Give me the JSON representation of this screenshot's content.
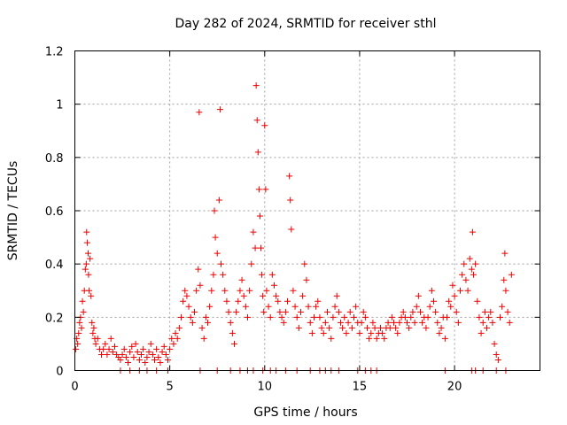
{
  "chart_data": {
    "type": "scatter",
    "title": "Day 282 of 2024, SRMTID for receiver sthl",
    "xlabel": "GPS time / hours",
    "ylabel": "SRMTID / TECUs",
    "xlim": [
      0,
      24.5
    ],
    "ylim": [
      0,
      1.2
    ],
    "xticks": [
      0,
      5,
      10,
      15,
      20
    ],
    "xtick_labels": [
      "0",
      "5",
      "10",
      "15",
      "20"
    ],
    "yticks": [
      0,
      0.2,
      0.4,
      0.6,
      0.8,
      1,
      1.2
    ],
    "ytick_labels": [
      "0",
      "0.2",
      "0.4",
      "0.6",
      "0.8",
      "1",
      "1.2"
    ],
    "grid": true,
    "marker": "+",
    "color": "#ee0000",
    "series": [
      {
        "name": "SRMTID",
        "points": [
          [
            0.05,
            0.08
          ],
          [
            0.1,
            0.12
          ],
          [
            0.15,
            0.1
          ],
          [
            0.2,
            0.14
          ],
          [
            0.25,
            0.18
          ],
          [
            0.3,
            0.2
          ],
          [
            0.35,
            0.16
          ],
          [
            0.4,
            0.26
          ],
          [
            0.45,
            0.22
          ],
          [
            0.5,
            0.3
          ],
          [
            0.55,
            0.38
          ],
          [
            0.6,
            0.4
          ],
          [
            0.62,
            0.52
          ],
          [
            0.65,
            0.48
          ],
          [
            0.7,
            0.44
          ],
          [
            0.72,
            0.36
          ],
          [
            0.75,
            0.3
          ],
          [
            0.8,
            0.42
          ],
          [
            0.85,
            0.28
          ],
          [
            0.9,
            0.18
          ],
          [
            0.95,
            0.14
          ],
          [
            1.0,
            0.16
          ],
          [
            1.05,
            0.12
          ],
          [
            1.1,
            0.1
          ],
          [
            1.2,
            0.12
          ],
          [
            1.3,
            0.08
          ],
          [
            1.4,
            0.06
          ],
          [
            1.5,
            0.08
          ],
          [
            1.6,
            0.1
          ],
          [
            1.7,
            0.06
          ],
          [
            1.8,
            0.08
          ],
          [
            1.9,
            0.12
          ],
          [
            2.0,
            0.07
          ],
          [
            2.1,
            0.09
          ],
          [
            2.2,
            0.06
          ],
          [
            2.3,
            0.05
          ],
          [
            2.4,
            0.04
          ],
          [
            2.5,
            0.06
          ],
          [
            2.6,
            0.08
          ],
          [
            2.7,
            0.05
          ],
          [
            2.8,
            0.03
          ],
          [
            2.9,
            0.07
          ],
          [
            3.0,
            0.09
          ],
          [
            3.1,
            0.05
          ],
          [
            3.2,
            0.1
          ],
          [
            3.3,
            0.07
          ],
          [
            3.4,
            0.04
          ],
          [
            3.5,
            0.06
          ],
          [
            3.6,
            0.08
          ],
          [
            3.7,
            0.03
          ],
          [
            3.8,
            0.05
          ],
          [
            3.9,
            0.07
          ],
          [
            4.0,
            0.1
          ],
          [
            4.1,
            0.06
          ],
          [
            4.2,
            0.04
          ],
          [
            4.3,
            0.08
          ],
          [
            4.4,
            0.05
          ],
          [
            4.5,
            0.03
          ],
          [
            4.6,
            0.07
          ],
          [
            4.7,
            0.09
          ],
          [
            4.8,
            0.06
          ],
          [
            4.9,
            0.04
          ],
          [
            5.0,
            0.08
          ],
          [
            5.1,
            0.12
          ],
          [
            5.2,
            0.1
          ],
          [
            5.3,
            0.14
          ],
          [
            5.4,
            0.12
          ],
          [
            5.5,
            0.16
          ],
          [
            5.6,
            0.2
          ],
          [
            5.7,
            0.26
          ],
          [
            5.8,
            0.3
          ],
          [
            5.9,
            0.28
          ],
          [
            6.0,
            0.24
          ],
          [
            6.1,
            0.2
          ],
          [
            6.2,
            0.18
          ],
          [
            6.3,
            0.22
          ],
          [
            6.4,
            0.3
          ],
          [
            6.5,
            0.38
          ],
          [
            6.55,
            0.97
          ],
          [
            6.6,
            0.32
          ],
          [
            6.7,
            0.16
          ],
          [
            6.8,
            0.12
          ],
          [
            6.9,
            0.2
          ],
          [
            7.0,
            0.18
          ],
          [
            7.1,
            0.24
          ],
          [
            7.2,
            0.3
          ],
          [
            7.3,
            0.36
          ],
          [
            7.35,
            0.6
          ],
          [
            7.4,
            0.5
          ],
          [
            7.5,
            0.44
          ],
          [
            7.6,
            0.64
          ],
          [
            7.65,
            0.98
          ],
          [
            7.7,
            0.4
          ],
          [
            7.8,
            0.36
          ],
          [
            7.9,
            0.3
          ],
          [
            8.0,
            0.26
          ],
          [
            8.1,
            0.22
          ],
          [
            8.2,
            0.18
          ],
          [
            8.3,
            0.14
          ],
          [
            8.4,
            0.1
          ],
          [
            8.5,
            0.22
          ],
          [
            8.6,
            0.26
          ],
          [
            8.7,
            0.3
          ],
          [
            8.8,
            0.34
          ],
          [
            8.9,
            0.28
          ],
          [
            9.0,
            0.24
          ],
          [
            9.1,
            0.2
          ],
          [
            9.2,
            0.3
          ],
          [
            9.3,
            0.4
          ],
          [
            9.4,
            0.52
          ],
          [
            9.5,
            0.46
          ],
          [
            9.55,
            1.07
          ],
          [
            9.6,
            0.94
          ],
          [
            9.65,
            0.82
          ],
          [
            9.7,
            0.68
          ],
          [
            9.75,
            0.58
          ],
          [
            9.8,
            0.46
          ],
          [
            9.85,
            0.36
          ],
          [
            9.9,
            0.28
          ],
          [
            9.95,
            0.22
          ],
          [
            10.0,
            0.92
          ],
          [
            10.05,
            0.68
          ],
          [
            10.1,
            0.3
          ],
          [
            10.2,
            0.24
          ],
          [
            10.3,
            0.2
          ],
          [
            10.4,
            0.36
          ],
          [
            10.5,
            0.32
          ],
          [
            10.6,
            0.28
          ],
          [
            10.7,
            0.26
          ],
          [
            10.8,
            0.22
          ],
          [
            10.9,
            0.2
          ],
          [
            11.0,
            0.18
          ],
          [
            11.1,
            0.22
          ],
          [
            11.2,
            0.26
          ],
          [
            11.3,
            0.73
          ],
          [
            11.35,
            0.64
          ],
          [
            11.4,
            0.53
          ],
          [
            11.5,
            0.3
          ],
          [
            11.6,
            0.24
          ],
          [
            11.7,
            0.2
          ],
          [
            11.8,
            0.16
          ],
          [
            11.9,
            0.22
          ],
          [
            12.0,
            0.28
          ],
          [
            12.1,
            0.4
          ],
          [
            12.2,
            0.34
          ],
          [
            12.3,
            0.24
          ],
          [
            12.4,
            0.18
          ],
          [
            12.5,
            0.14
          ],
          [
            12.6,
            0.2
          ],
          [
            12.7,
            0.24
          ],
          [
            12.8,
            0.26
          ],
          [
            12.9,
            0.2
          ],
          [
            13.0,
            0.16
          ],
          [
            13.1,
            0.14
          ],
          [
            13.2,
            0.18
          ],
          [
            13.3,
            0.22
          ],
          [
            13.4,
            0.16
          ],
          [
            13.5,
            0.12
          ],
          [
            13.6,
            0.2
          ],
          [
            13.7,
            0.24
          ],
          [
            13.8,
            0.28
          ],
          [
            13.9,
            0.22
          ],
          [
            14.0,
            0.18
          ],
          [
            14.1,
            0.16
          ],
          [
            14.2,
            0.2
          ],
          [
            14.3,
            0.14
          ],
          [
            14.4,
            0.18
          ],
          [
            14.5,
            0.22
          ],
          [
            14.6,
            0.16
          ],
          [
            14.7,
            0.2
          ],
          [
            14.8,
            0.24
          ],
          [
            14.9,
            0.18
          ],
          [
            15.0,
            0.14
          ],
          [
            15.1,
            0.18
          ],
          [
            15.2,
            0.22
          ],
          [
            15.3,
            0.2
          ],
          [
            15.4,
            0.16
          ],
          [
            15.5,
            0.12
          ],
          [
            15.6,
            0.14
          ],
          [
            15.7,
            0.18
          ],
          [
            15.8,
            0.16
          ],
          [
            15.9,
            0.12
          ],
          [
            16.0,
            0.14
          ],
          [
            16.1,
            0.16
          ],
          [
            16.2,
            0.14
          ],
          [
            16.3,
            0.12
          ],
          [
            16.4,
            0.16
          ],
          [
            16.5,
            0.18
          ],
          [
            16.6,
            0.16
          ],
          [
            16.7,
            0.2
          ],
          [
            16.8,
            0.18
          ],
          [
            16.9,
            0.16
          ],
          [
            17.0,
            0.14
          ],
          [
            17.1,
            0.18
          ],
          [
            17.2,
            0.2
          ],
          [
            17.3,
            0.22
          ],
          [
            17.4,
            0.2
          ],
          [
            17.5,
            0.18
          ],
          [
            17.6,
            0.16
          ],
          [
            17.7,
            0.2
          ],
          [
            17.8,
            0.22
          ],
          [
            17.9,
            0.18
          ],
          [
            18.0,
            0.24
          ],
          [
            18.1,
            0.28
          ],
          [
            18.2,
            0.22
          ],
          [
            18.3,
            0.18
          ],
          [
            18.4,
            0.2
          ],
          [
            18.5,
            0.16
          ],
          [
            18.6,
            0.2
          ],
          [
            18.7,
            0.24
          ],
          [
            18.8,
            0.3
          ],
          [
            18.9,
            0.26
          ],
          [
            19.0,
            0.22
          ],
          [
            19.1,
            0.18
          ],
          [
            19.2,
            0.14
          ],
          [
            19.3,
            0.16
          ],
          [
            19.4,
            0.2
          ],
          [
            19.5,
            0.12
          ],
          [
            19.6,
            0.2
          ],
          [
            19.7,
            0.26
          ],
          [
            19.8,
            0.24
          ],
          [
            19.9,
            0.32
          ],
          [
            20.0,
            0.28
          ],
          [
            20.1,
            0.22
          ],
          [
            20.2,
            0.18
          ],
          [
            20.3,
            0.3
          ],
          [
            20.4,
            0.36
          ],
          [
            20.5,
            0.4
          ],
          [
            20.6,
            0.34
          ],
          [
            20.7,
            0.3
          ],
          [
            20.8,
            0.42
          ],
          [
            20.9,
            0.38
          ],
          [
            20.95,
            0.52
          ],
          [
            21.0,
            0.36
          ],
          [
            21.1,
            0.4
          ],
          [
            21.2,
            0.26
          ],
          [
            21.3,
            0.2
          ],
          [
            21.4,
            0.14
          ],
          [
            21.5,
            0.18
          ],
          [
            21.6,
            0.22
          ],
          [
            21.7,
            0.16
          ],
          [
            21.8,
            0.2
          ],
          [
            21.9,
            0.22
          ],
          [
            22.0,
            0.18
          ],
          [
            22.1,
            0.1
          ],
          [
            22.2,
            0.06
          ],
          [
            22.3,
            0.04
          ],
          [
            22.4,
            0.2
          ],
          [
            22.5,
            0.24
          ],
          [
            22.6,
            0.34
          ],
          [
            22.65,
            0.44
          ],
          [
            22.7,
            0.3
          ],
          [
            22.8,
            0.22
          ],
          [
            22.9,
            0.18
          ],
          [
            23.0,
            0.36
          ],
          [
            2.4,
            0.0
          ],
          [
            2.9,
            0.0
          ],
          [
            3.4,
            0.0
          ],
          [
            3.8,
            0.0
          ],
          [
            4.3,
            0.0
          ],
          [
            4.9,
            0.0
          ],
          [
            6.6,
            0.0
          ],
          [
            7.5,
            0.0
          ],
          [
            8.2,
            0.0
          ],
          [
            8.7,
            0.0
          ],
          [
            9.1,
            0.0
          ],
          [
            9.4,
            0.0
          ],
          [
            9.9,
            0.0
          ],
          [
            10.3,
            0.0
          ],
          [
            10.6,
            0.0
          ],
          [
            11.1,
            0.0
          ],
          [
            11.7,
            0.0
          ],
          [
            12.4,
            0.0
          ],
          [
            12.9,
            0.0
          ],
          [
            13.2,
            0.0
          ],
          [
            13.5,
            0.0
          ],
          [
            13.9,
            0.0
          ],
          [
            14.9,
            0.0
          ],
          [
            15.3,
            0.0
          ],
          [
            15.6,
            0.0
          ],
          [
            15.9,
            0.0
          ],
          [
            19.5,
            0.0
          ],
          [
            20.9,
            0.0
          ],
          [
            21.1,
            0.0
          ],
          [
            21.5,
            0.0
          ],
          [
            22.2,
            0.0
          ],
          [
            22.7,
            0.0
          ]
        ]
      }
    ]
  }
}
